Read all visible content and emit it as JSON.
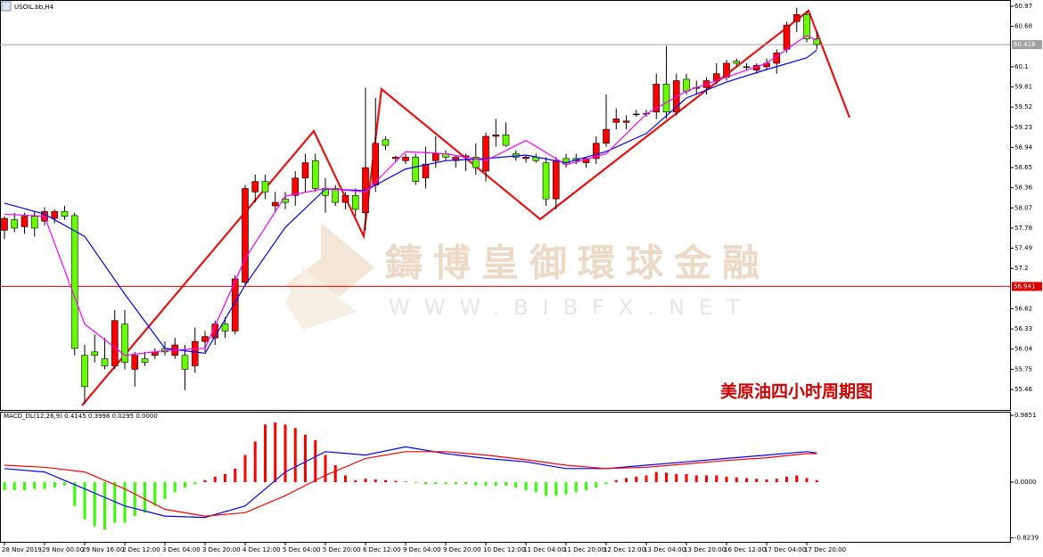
{
  "chart_data": [
    {
      "type": "candlestick",
      "title": "USOIL.bb,H4",
      "annotation": "美原油四小时周期图",
      "categories": [
        "28 Nov 2019",
        null,
        null,
        null,
        "29 Nov 00:00",
        null,
        null,
        null,
        "29 Nov 16:00",
        null,
        null,
        null,
        "2 Dec 12:00",
        null,
        null,
        null,
        "3 Dec 04:00",
        null,
        null,
        null,
        "3 Dec 20:00",
        null,
        null,
        null,
        "4 Dec 12:00",
        null,
        null,
        null,
        "5 Dec 04:00",
        null,
        null,
        null,
        "5 Dec 20:00",
        null,
        null,
        null,
        "6 Dec 12:00",
        null,
        null,
        null,
        "9 Dec 04:00",
        null,
        null,
        null,
        "9 Dec 20:00",
        null,
        null,
        null,
        "10 Dec 12:00",
        null,
        null,
        null,
        "11 Dec 04:00",
        null,
        null,
        null,
        "11 Dec 20:00",
        null,
        null,
        null,
        "12 Dec 12:00",
        null,
        null,
        null,
        "13 Dec 04:00",
        null,
        null,
        null,
        "13 Dec 20:00",
        null,
        null,
        null,
        "16 Dec 12:00",
        null,
        null,
        null,
        "17 Dec 04:00",
        null,
        null,
        null,
        "17 Dec 20:00",
        null
      ],
      "open": [
        57.75,
        57.9,
        57.8,
        57.95,
        57.88,
        57.92,
        58.02,
        57.96,
        55.95,
        56.0,
        55.9,
        55.8,
        56.4,
        55.75,
        55.9,
        55.95,
        56.05,
        55.95,
        55.95,
        55.8,
        56.15,
        56.2,
        56.4,
        56.3,
        57.0,
        58.3,
        58.45,
        58.1,
        58.2,
        58.25,
        58.5,
        58.75,
        58.35,
        58.35,
        58.15,
        58.25,
        58.0,
        58.4,
        59.05,
        58.78,
        58.75,
        58.8,
        58.5,
        58.75,
        58.85,
        58.75,
        58.8,
        58.8,
        58.6,
        59.1,
        59.12,
        58.85,
        58.78,
        58.8,
        58.72,
        58.2,
        58.78,
        58.78,
        58.72,
        58.78,
        59.0,
        59.3,
        59.3,
        59.42,
        59.42,
        59.45,
        59.85,
        59.45,
        59.92,
        59.8,
        59.8,
        59.9,
        59.95,
        60.18,
        60.1,
        60.05,
        60.1,
        60.15,
        60.35,
        60.75,
        60.85,
        60.5
      ],
      "high": [
        57.95,
        58.0,
        58.0,
        58.02,
        58.08,
        58.05,
        58.1,
        58.0,
        56.1,
        56.25,
        56.2,
        56.6,
        56.6,
        56.0,
        56.0,
        56.05,
        56.15,
        56.2,
        56.1,
        56.35,
        56.3,
        56.45,
        56.5,
        57.1,
        58.4,
        58.55,
        58.55,
        58.3,
        58.3,
        58.6,
        58.85,
        58.85,
        58.5,
        58.4,
        58.3,
        58.35,
        59.8,
        59.65,
        59.1,
        58.82,
        58.85,
        58.85,
        58.95,
        59.1,
        58.9,
        58.82,
        58.85,
        59.0,
        59.15,
        59.35,
        59.3,
        58.9,
        58.82,
        58.85,
        58.8,
        58.8,
        58.85,
        58.85,
        58.8,
        59.1,
        59.7,
        59.5,
        59.4,
        59.48,
        59.48,
        60.0,
        60.4,
        60.0,
        60.0,
        59.9,
        59.95,
        60.15,
        60.2,
        60.22,
        60.15,
        60.15,
        60.22,
        60.35,
        60.75,
        60.95,
        60.9,
        60.6
      ],
      "low": [
        57.62,
        57.72,
        57.7,
        57.66,
        57.82,
        57.85,
        57.9,
        55.95,
        55.25,
        55.85,
        55.75,
        55.75,
        55.75,
        55.5,
        55.8,
        55.9,
        55.95,
        55.9,
        55.45,
        55.7,
        56.0,
        56.1,
        56.2,
        56.25,
        56.95,
        58.15,
        58.2,
        58.0,
        58.05,
        58.1,
        58.3,
        58.3,
        58.0,
        58.1,
        58.05,
        57.95,
        57.75,
        58.3,
        58.9,
        58.72,
        58.7,
        58.4,
        58.35,
        58.65,
        58.75,
        58.65,
        58.6,
        58.55,
        58.45,
        58.95,
        58.95,
        58.75,
        58.72,
        58.72,
        58.1,
        58.05,
        58.65,
        58.7,
        58.65,
        58.7,
        58.95,
        59.2,
        59.2,
        59.38,
        59.38,
        59.35,
        59.35,
        59.4,
        59.7,
        59.7,
        59.7,
        59.85,
        59.9,
        60.1,
        60.05,
        60.0,
        60.05,
        60.0,
        60.3,
        60.6,
        60.45,
        60.35
      ],
      "close": [
        57.92,
        57.78,
        57.95,
        57.78,
        58.02,
        58.02,
        57.95,
        56.05,
        55.5,
        55.95,
        55.8,
        56.45,
        55.85,
        55.95,
        55.85,
        56.0,
        56.0,
        56.1,
        55.75,
        56.15,
        56.22,
        56.4,
        56.3,
        57.05,
        58.35,
        58.45,
        58.3,
        58.15,
        58.15,
        58.5,
        58.72,
        58.35,
        58.25,
        58.15,
        58.25,
        58.05,
        58.65,
        59.0,
        58.97,
        58.8,
        58.8,
        58.45,
        58.7,
        58.85,
        58.8,
        58.8,
        58.82,
        58.65,
        59.1,
        59.12,
        58.97,
        58.8,
        58.8,
        58.75,
        58.2,
        58.75,
        58.7,
        58.75,
        58.78,
        59.0,
        59.2,
        59.35,
        59.32,
        59.42,
        59.43,
        59.85,
        59.45,
        59.9,
        59.75,
        59.8,
        59.9,
        60.0,
        60.15,
        60.15,
        60.1,
        60.12,
        60.15,
        60.3,
        60.7,
        60.85,
        60.5,
        60.42
      ],
      "up_color": "#ff0000",
      "down_color": "#66ff00",
      "overlays": [
        {
          "color": "#0000ff",
          "x": [
            0,
            4,
            8,
            12,
            16,
            20,
            24,
            28,
            32,
            36,
            40,
            44,
            48,
            52,
            56,
            60,
            64,
            68,
            72,
            76,
            80,
            81
          ],
          "values": [
            58.14,
            57.98,
            57.66,
            56.83,
            56.05,
            55.98,
            56.96,
            57.79,
            58.34,
            58.32,
            58.63,
            58.75,
            58.78,
            58.83,
            58.72,
            58.88,
            59.14,
            59.65,
            59.88,
            60.06,
            60.23,
            60.34
          ]
        },
        {
          "color": "#ff00ff",
          "x": [
            0,
            4,
            8,
            12,
            16,
            20,
            24,
            28,
            32,
            36,
            40,
            44,
            48,
            52,
            56,
            60,
            64,
            68,
            72,
            76,
            80,
            81
          ],
          "values": [
            57.98,
            57.95,
            56.4,
            55.95,
            56.02,
            56.05,
            57.34,
            58.24,
            58.35,
            58.3,
            58.88,
            58.85,
            58.75,
            59.04,
            58.69,
            58.85,
            59.42,
            59.75,
            59.95,
            60.15,
            60.55,
            60.48
          ]
        }
      ],
      "price_lines": [
        {
          "value": 60.418,
          "color": "#a0a0a0"
        },
        {
          "value": 56.941,
          "color": "#e00000"
        }
      ],
      "ylim": [
        55.165,
        61.06
      ],
      "yticks": [
        60.97,
        60.68,
        60.1,
        59.81,
        59.52,
        59.23,
        58.94,
        58.65,
        58.36,
        58.07,
        57.78,
        57.49,
        57.2,
        56.62,
        56.33,
        56.04,
        55.75,
        55.46
      ]
    },
    {
      "type": "macd",
      "title": "MACD_DL(12,26,9) 0.4145 0.3998 0.0295 0.0000",
      "values": [
        -0.12,
        -0.12,
        -0.12,
        -0.1,
        -0.1,
        -0.08,
        -0.05,
        -0.35,
        -0.55,
        -0.65,
        -0.7,
        -0.6,
        -0.6,
        -0.5,
        -0.45,
        -0.35,
        -0.25,
        -0.15,
        -0.08,
        -0.03,
        0.03,
        0.08,
        0.12,
        0.2,
        0.4,
        0.6,
        0.85,
        0.88,
        0.85,
        0.8,
        0.7,
        0.62,
        0.4,
        0.25,
        0.1,
        0.03,
        0.05,
        0.04,
        0.03,
        0.02,
        0.01,
        -0.01,
        -0.03,
        -0.03,
        -0.03,
        -0.03,
        -0.03,
        -0.05,
        -0.05,
        -0.05,
        -0.05,
        -0.08,
        -0.12,
        -0.15,
        -0.2,
        -0.2,
        -0.18,
        -0.15,
        -0.12,
        -0.08,
        -0.03,
        0.03,
        0.06,
        0.08,
        0.1,
        0.15,
        0.14,
        0.12,
        0.12,
        0.1,
        0.1,
        0.1,
        0.08,
        0.07,
        0.06,
        0.05,
        0.04,
        0.05,
        0.08,
        0.1,
        0.06,
        0.03
      ],
      "up_color": "#ff0000",
      "down_color": "#33ff00",
      "series": [
        {
          "color": "#0000ff",
          "x": [
            0,
            4,
            8,
            12,
            16,
            20,
            24,
            28,
            32,
            36,
            40,
            44,
            48,
            52,
            56,
            60,
            64,
            68,
            72,
            76,
            80,
            81
          ],
          "values": [
            0.2,
            0.15,
            -0.1,
            -0.35,
            -0.5,
            -0.52,
            -0.35,
            0.15,
            0.45,
            0.4,
            0.52,
            0.42,
            0.35,
            0.3,
            0.2,
            0.2,
            0.25,
            0.3,
            0.35,
            0.4,
            0.45,
            0.43
          ]
        },
        {
          "color": "#ff0000",
          "x": [
            0,
            4,
            8,
            12,
            16,
            20,
            24,
            28,
            32,
            36,
            40,
            44,
            48,
            52,
            56,
            60,
            64,
            68,
            72,
            76,
            80,
            81
          ],
          "values": [
            0.25,
            0.22,
            0.15,
            -0.1,
            -0.4,
            -0.5,
            -0.45,
            -0.2,
            0.1,
            0.35,
            0.45,
            0.45,
            0.4,
            0.33,
            0.25,
            0.2,
            0.22,
            0.27,
            0.32,
            0.36,
            0.42,
            0.42
          ]
        }
      ],
      "ylim": [
        -0.88,
        1.038
      ],
      "yticks": [
        0.9851,
        {
          "value": 0,
          "label": "0.0000"
        },
        -0.8239
      ]
    }
  ],
  "watermark": {
    "name": "鑄博皇御環球金融",
    "url": "WWW.BIBFX.NET"
  }
}
